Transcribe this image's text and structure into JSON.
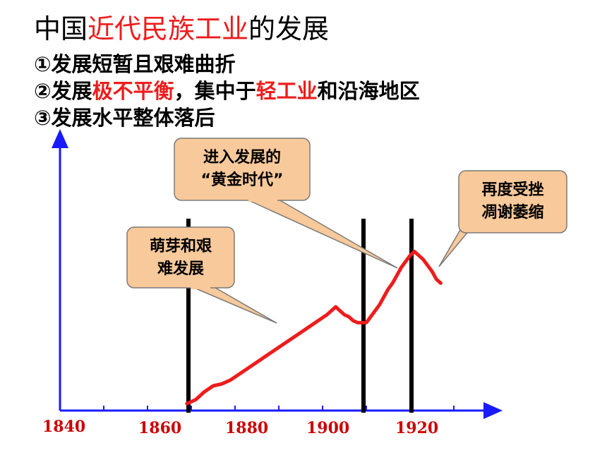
{
  "title": {
    "prefix": "中国",
    "highlight": "近代民族工业",
    "suffix": "的发展"
  },
  "points": [
    {
      "label": "①发展短暂且艰难曲折"
    },
    {
      "label": "②发展",
      "hl1": "极不平衡",
      "mid": "，集中于",
      "hl2": "轻工业",
      "end": "和沿海地区"
    },
    {
      "label": "③发展水平整体落后"
    }
  ],
  "colors": {
    "curve": "#ee1c1c",
    "axis": "#1a1aff",
    "callout_fill": "#f8c99a",
    "callout_stroke": "#7a7a7a",
    "highlight": "#ee1c1c",
    "tick_label": "#cc0000"
  },
  "chart_data": {
    "type": "line",
    "x_tick_labels": [
      "1840",
      "1860",
      "1880",
      "1900",
      "1920"
    ],
    "x_range": [
      1840,
      1935
    ],
    "y_range": [
      0,
      100
    ],
    "series": [
      {
        "x": [
          1869,
          1871,
          1873,
          1875,
          1877,
          1879,
          1881,
          1883,
          1885,
          1887,
          1889,
          1891,
          1893,
          1895,
          1897,
          1899,
          1901,
          1903,
          1904,
          1905,
          1906,
          1907,
          1908,
          1909,
          1910,
          1911,
          1912,
          1913,
          1914,
          1915,
          1916,
          1917,
          1918,
          1919,
          1920,
          1921,
          1922,
          1923,
          1924,
          1925,
          1926,
          1927
        ],
        "y": [
          1,
          3,
          7,
          10,
          11,
          13,
          16,
          19,
          22,
          25,
          28,
          31,
          34,
          37,
          40,
          43,
          46,
          50,
          48,
          46,
          45,
          43,
          42,
          42,
          42,
          45,
          48,
          51,
          55,
          59,
          62,
          66,
          70,
          73,
          76,
          78,
          76,
          74,
          71,
          68,
          64,
          62
        ]
      }
    ],
    "vertical_markers": [
      1869,
      1909,
      1920
    ],
    "annotations": [
      {
        "lines": [
          "萌芽和艰",
          "难发展"
        ]
      },
      {
        "lines": [
          "进入发展的",
          "“黄金时代”"
        ]
      },
      {
        "lines": [
          "再度受挫",
          "凋谢萎缩"
        ]
      }
    ]
  }
}
